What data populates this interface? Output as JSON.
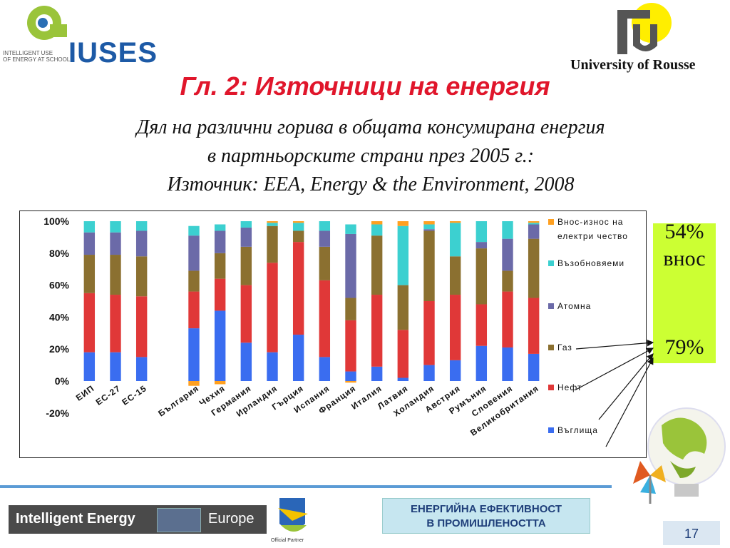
{
  "header": {
    "iuses_tagline_1": "INTELLIGENT USE",
    "iuses_tagline_2": "OF ENERGY AT SCHOOL",
    "iuses_name": "IUSES",
    "university": "University of Rousse"
  },
  "title": "Гл. 2: Източници на енергия",
  "subtitle_lines": [
    "Дял на различни горива в общата консумирана енергия",
    "в партньорските страни през 2005 г.:",
    "Източник: EEA, Energy & the Environment, 2008"
  ],
  "callout": {
    "pct_import": "54%",
    "import_word": "внос",
    "pct_second": "79%"
  },
  "footer": {
    "ie_left": "Intelligent Energy",
    "ie_right": "Europe",
    "partner": "Official Partner",
    "ee_line1": "ЕНЕРГИЙНА ЕФЕКТИВНОСТ",
    "ee_line2": "В ПРОМИШЛЕНОСТТА",
    "page": "17"
  },
  "colors": {
    "coal": "#3a6df0",
    "oil": "#e03838",
    "gas": "#8b7030",
    "nuclear": "#6b6aa8",
    "renewables": "#3cd0d0",
    "import_export": "#ffa020",
    "callout_bg": "#ccff33",
    "title": "#e0162b"
  },
  "chart_data": {
    "type": "bar",
    "stacked": true,
    "categories": [
      "ЕИП",
      "ЕС-27",
      "ЕС-15",
      "",
      "България",
      "Чехия",
      "Германия",
      "Ирландия",
      "Гърция",
      "Испания",
      "Франция",
      "Италия",
      "Латвия",
      "Холандия",
      "Австрия",
      "Румъния",
      "Словения",
      "Великобритания"
    ],
    "ylim": [
      -20,
      100
    ],
    "yticks": [
      "100%",
      "80%",
      "60%",
      "40%",
      "20%",
      "0%",
      "-20%"
    ],
    "legend_position": "right",
    "series": [
      {
        "name": "Въглища",
        "values": [
          18,
          18,
          15,
          0,
          33,
          44,
          24,
          18,
          29,
          15,
          6,
          9,
          2,
          10,
          13,
          22,
          21,
          17
        ]
      },
      {
        "name": "Нефт",
        "values": [
          37,
          36,
          38,
          0,
          23,
          20,
          36,
          56,
          58,
          48,
          32,
          45,
          30,
          40,
          41,
          26,
          35,
          35
        ]
      },
      {
        "name": "Газ",
        "values": [
          24,
          25,
          25,
          0,
          13,
          16,
          24,
          23,
          7,
          21,
          14,
          37,
          28,
          44,
          24,
          35,
          13,
          37
        ]
      },
      {
        "name": "Атомна",
        "values": [
          14,
          14,
          16,
          0,
          22,
          14,
          12,
          0,
          0,
          10,
          40,
          0,
          0,
          1,
          0,
          4,
          20,
          9
        ]
      },
      {
        "name": "Възобновяеми",
        "values": [
          7,
          7,
          6,
          0,
          6,
          4,
          4,
          2,
          5,
          6,
          6,
          7,
          37,
          3,
          21,
          13,
          11,
          1
        ]
      },
      {
        "name": "Внос-износ на електри чество",
        "values": [
          0,
          0,
          0,
          0,
          -3,
          -2,
          0,
          1,
          1,
          0,
          -1,
          2,
          3,
          2,
          1,
          0,
          0,
          1
        ]
      }
    ]
  }
}
